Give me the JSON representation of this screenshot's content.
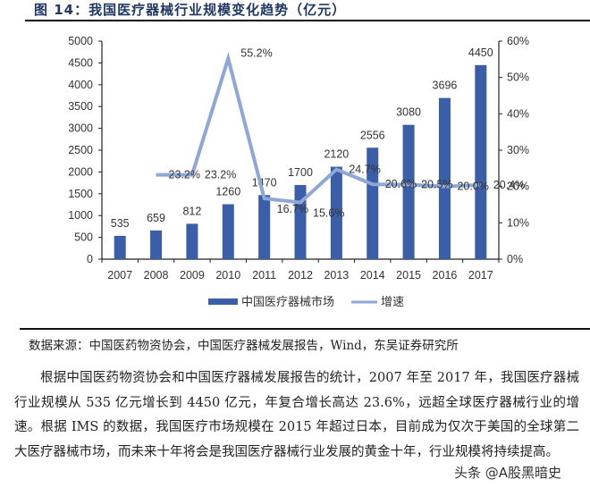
{
  "figure": {
    "title": "图 14：我国医疗器械行业规模变化趋势（亿元）"
  },
  "chart_data": {
    "type": "bar+line",
    "title": "我国医疗器械行业规模变化趋势（亿元）",
    "categories": [
      "2007",
      "2008",
      "2009",
      "2010",
      "2011",
      "2012",
      "2013",
      "2014",
      "2015",
      "2016",
      "2017"
    ],
    "series": [
      {
        "name": "中国医疗器械市场",
        "type": "bar",
        "axis": "left",
        "color": "#3a5ea8",
        "values": [
          535,
          659,
          812,
          1260,
          1470,
          1700,
          2120,
          2556,
          3080,
          3696,
          4450
        ]
      },
      {
        "name": "增速",
        "type": "line",
        "axis": "right",
        "color": "#8ea6d8",
        "values": [
          null,
          23.2,
          23.2,
          55.2,
          16.7,
          15.6,
          24.7,
          20.6,
          20.5,
          20.0,
          20.4
        ],
        "labels": [
          "",
          "23.2%",
          "23.2%",
          "55.2%",
          "16.7%",
          "15.6%",
          "24.7%",
          "20.6%",
          "20.5%",
          "20.0%",
          "20.4%"
        ]
      }
    ],
    "y_left": {
      "min": 0,
      "max": 5000,
      "ticks": [
        0,
        500,
        1000,
        1500,
        2000,
        2500,
        3000,
        3500,
        4000,
        4500,
        5000
      ]
    },
    "y_right": {
      "min": 0,
      "max": 60,
      "ticks": [
        "0%",
        "10%",
        "20%",
        "30%",
        "40%",
        "50%",
        "60%"
      ]
    },
    "legend": {
      "position": "bottom",
      "items": [
        "中国医疗器械市场",
        "增速"
      ]
    },
    "grid": false
  },
  "source": "数据来源：中国医药物资协会，中国医疗器械发展报告，Wind，东吴证券研究所",
  "paragraph": "根据中国医药物资协会和中国医疗器械发展报告的统计，2007 年至 2017 年，我国医疗器械行业规模从 535 亿元增长到 4450 亿元，年复合增长高达 23.6%，远超全球医疗器械行业的增速。根据 IMS 的数据，我国医疗市场规模在 2015 年超过日本，目前成为仅次于美国的全球第二大医疗器械市场，而未来十年将会是我国医疗器械行业发展的黄金十年，行业规模将持续提高。",
  "watermark": "头条 @A股黑暗史"
}
